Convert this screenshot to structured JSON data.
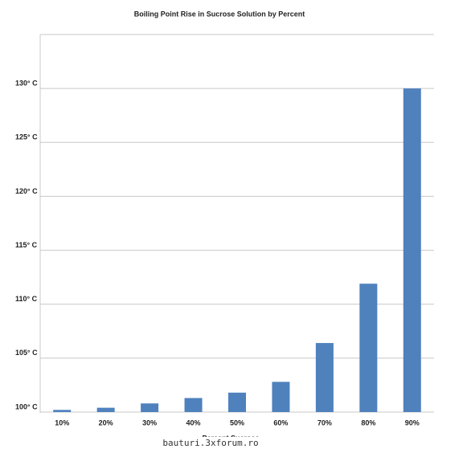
{
  "chart_data": {
    "type": "bar",
    "title": "Boiling Point Rise in Sucrose Solution by Percent",
    "x_label": "Percent Sucrose",
    "categories": [
      "10%",
      "20%",
      "30%",
      "40%",
      "50%",
      "60%",
      "70%",
      "80%",
      "90%"
    ],
    "values": [
      100.2,
      100.4,
      100.8,
      101.3,
      101.8,
      102.8,
      106.4,
      111.9,
      130
    ],
    "color": "#4f81bd",
    "ylim": [
      100,
      135
    ],
    "yticks": [
      {
        "value": 100,
        "label": "100° C"
      },
      {
        "value": 105,
        "label": "105° C"
      },
      {
        "value": 110,
        "label": "110° C"
      },
      {
        "value": 115,
        "label": "115° C"
      },
      {
        "value": 120,
        "label": "120° C"
      },
      {
        "value": 125,
        "label": "125° C"
      },
      {
        "value": 130,
        "label": "130° C"
      }
    ],
    "grid": true
  },
  "watermark": "bauturi.3xforum.ro"
}
